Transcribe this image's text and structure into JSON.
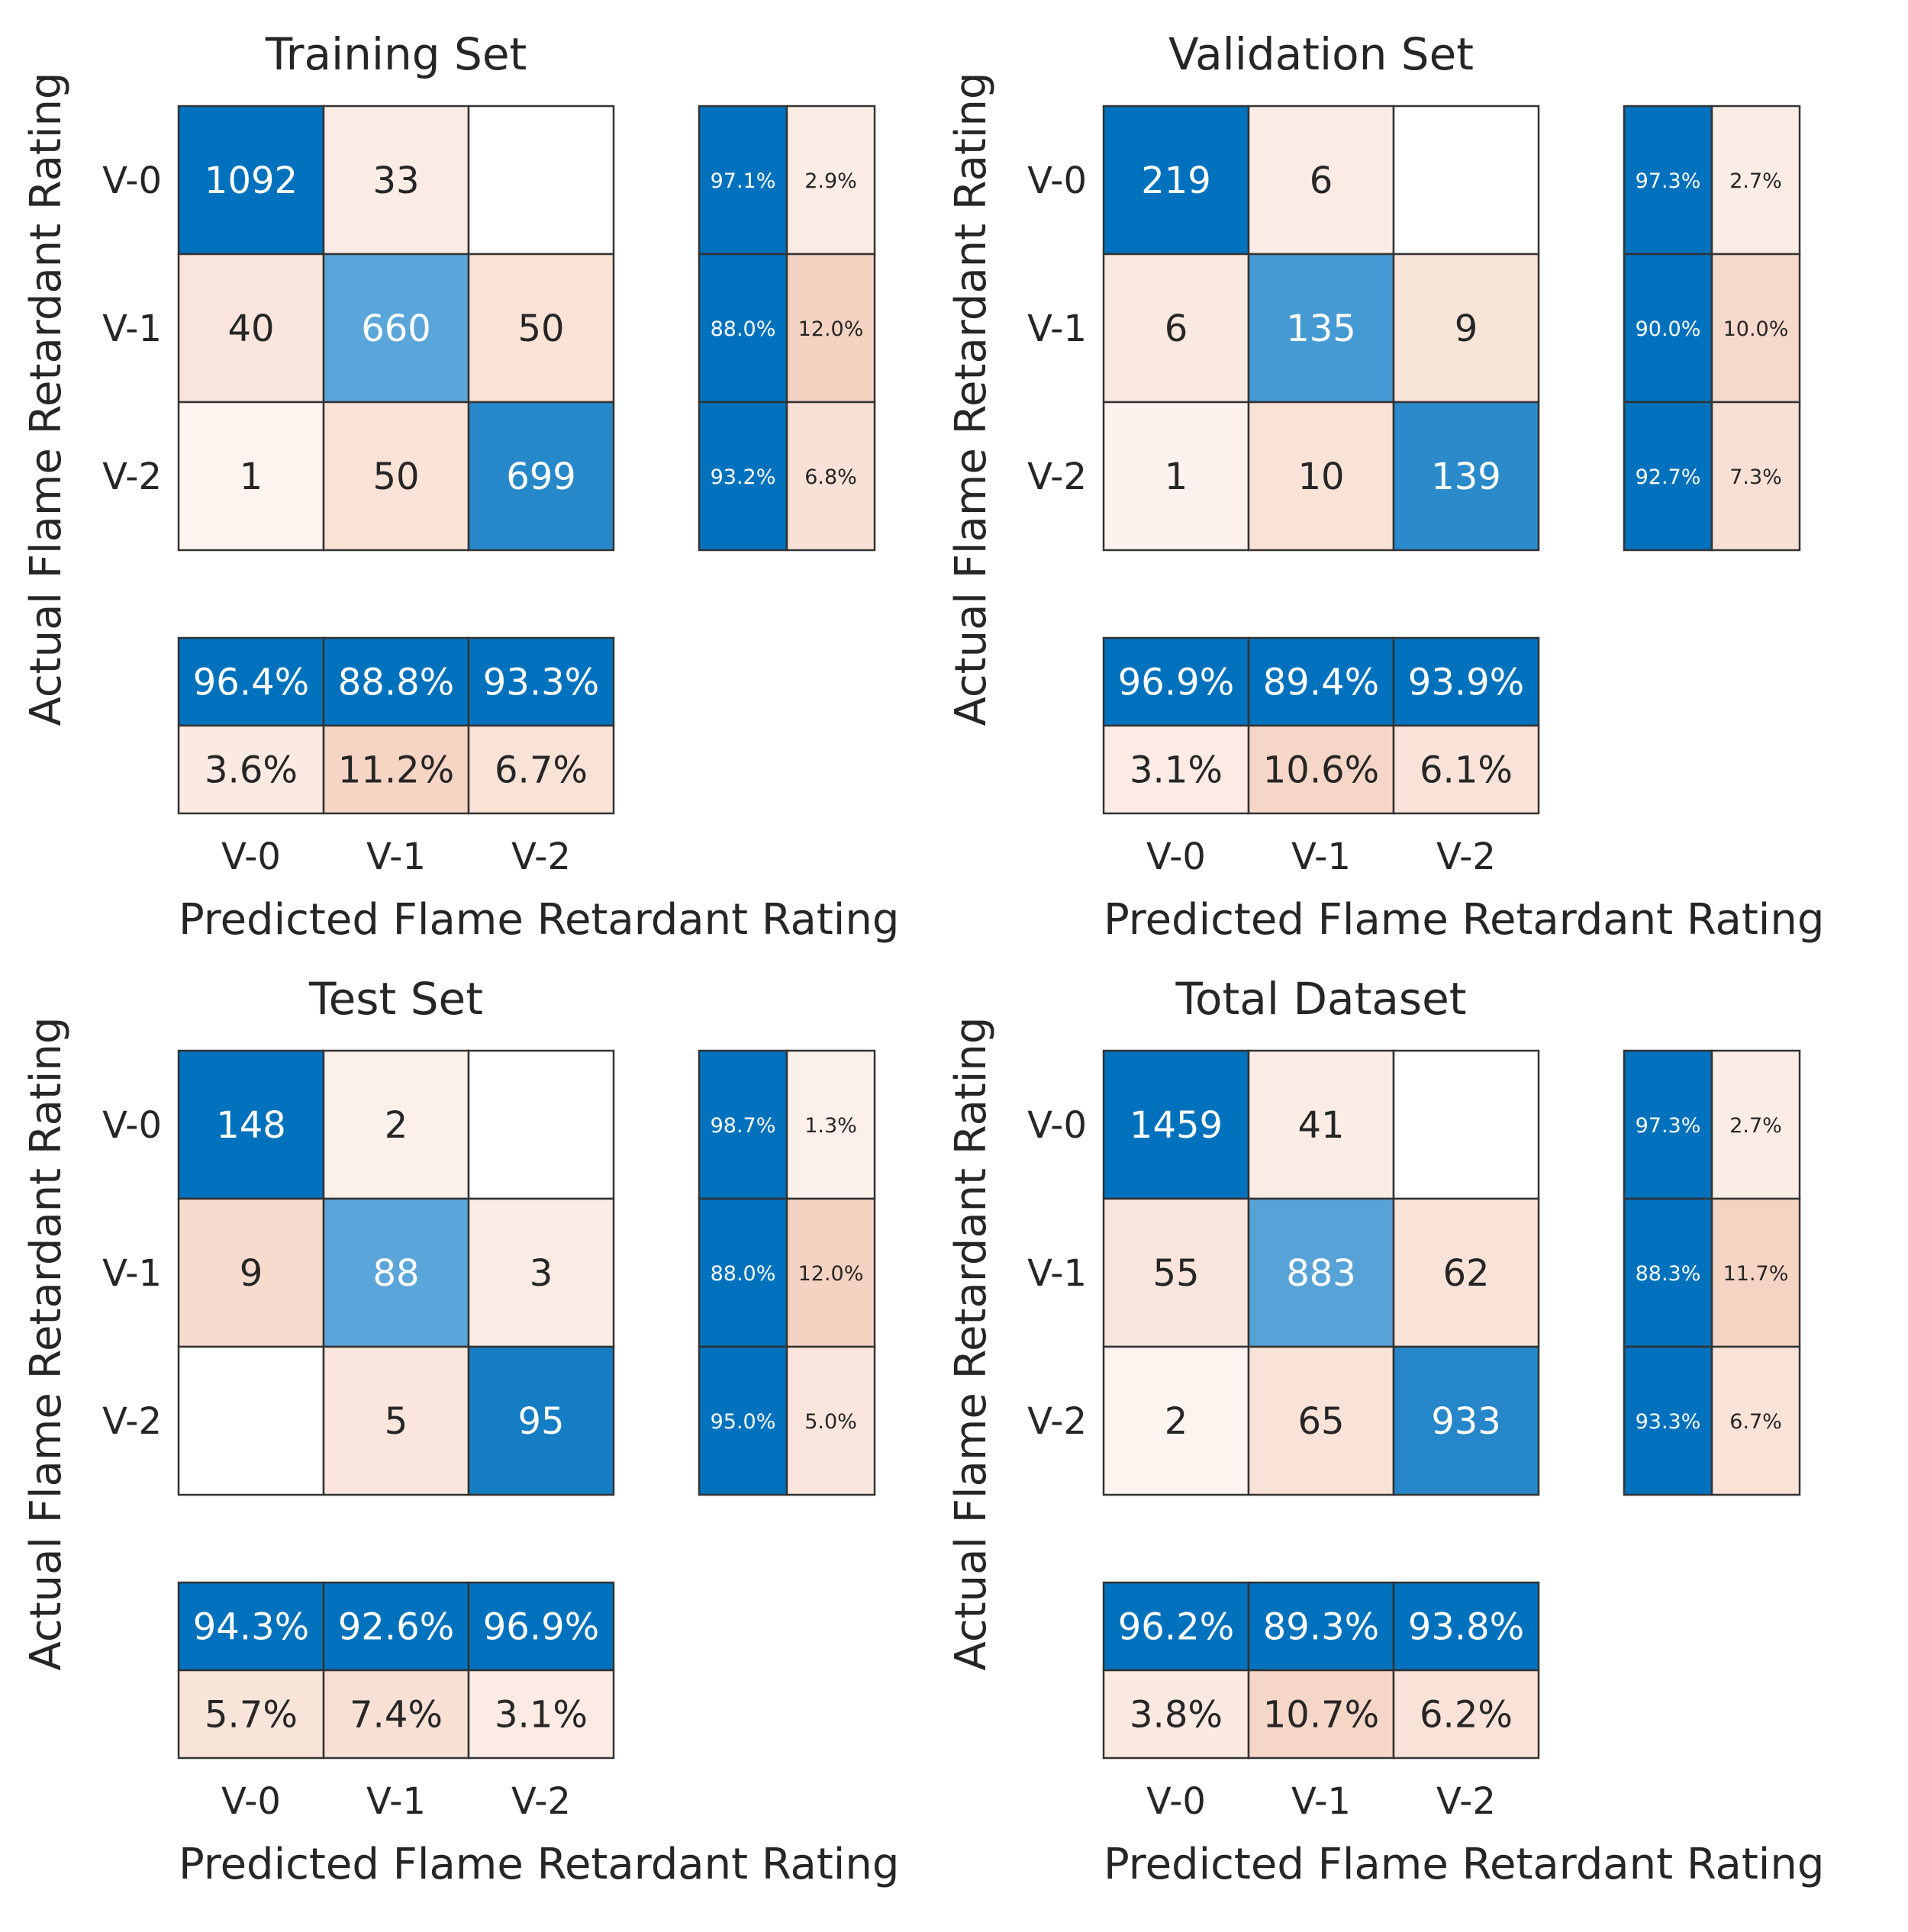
{
  "chart_data": [
    {
      "type": "heatmap",
      "title": "Training Set",
      "xlabel": "Predicted Flame Retardant Rating",
      "ylabel": "Actual Flame Retardant Rating",
      "classes": [
        "V-0",
        "V-1",
        "V-2"
      ],
      "matrix": [
        [
          1092,
          33,
          null
        ],
        [
          40,
          660,
          50
        ],
        [
          1,
          50,
          699
        ]
      ],
      "row_summary": [
        [
          "97.1%",
          "2.9%"
        ],
        [
          "88.0%",
          "12.0%"
        ],
        [
          "93.2%",
          "6.8%"
        ]
      ],
      "column_summary": [
        [
          "96.4%",
          "88.8%",
          "93.3%"
        ],
        [
          "3.6%",
          "11.2%",
          "6.7%"
        ]
      ]
    },
    {
      "type": "heatmap",
      "title": "Validation Set",
      "xlabel": "Predicted Flame Retardant Rating",
      "ylabel": "Actual Flame Retardant Rating",
      "classes": [
        "V-0",
        "V-1",
        "V-2"
      ],
      "matrix": [
        [
          219,
          6,
          null
        ],
        [
          6,
          135,
          9
        ],
        [
          1,
          10,
          139
        ]
      ],
      "row_summary": [
        [
          "97.3%",
          "2.7%"
        ],
        [
          "90.0%",
          "10.0%"
        ],
        [
          "92.7%",
          "7.3%"
        ]
      ],
      "column_summary": [
        [
          "96.9%",
          "89.4%",
          "93.9%"
        ],
        [
          "3.1%",
          "10.6%",
          "6.1%"
        ]
      ]
    },
    {
      "type": "heatmap",
      "title": "Test Set",
      "xlabel": "Predicted Flame Retardant Rating",
      "ylabel": "Actual Flame Retardant Rating",
      "classes": [
        "V-0",
        "V-1",
        "V-2"
      ],
      "matrix": [
        [
          148,
          2,
          null
        ],
        [
          9,
          88,
          3
        ],
        [
          null,
          5,
          95
        ]
      ],
      "row_summary": [
        [
          "98.7%",
          "1.3%"
        ],
        [
          "88.0%",
          "12.0%"
        ],
        [
          "95.0%",
          "5.0%"
        ]
      ],
      "column_summary": [
        [
          "94.3%",
          "92.6%",
          "96.9%"
        ],
        [
          "5.7%",
          "7.4%",
          "3.1%"
        ]
      ]
    },
    {
      "type": "heatmap",
      "title": "Total Dataset",
      "xlabel": "Predicted Flame Retardant Rating",
      "ylabel": "Actual Flame Retardant Rating",
      "classes": [
        "V-0",
        "V-1",
        "V-2"
      ],
      "matrix": [
        [
          1459,
          41,
          null
        ],
        [
          55,
          883,
          62
        ],
        [
          2,
          65,
          933
        ]
      ],
      "row_summary": [
        [
          "97.3%",
          "2.7%"
        ],
        [
          "88.3%",
          "11.7%"
        ],
        [
          "93.3%",
          "6.7%"
        ]
      ],
      "column_summary": [
        [
          "96.2%",
          "89.3%",
          "93.8%"
        ],
        [
          "3.8%",
          "10.7%",
          "6.2%"
        ]
      ]
    }
  ],
  "colors": {
    "correct_strong": "#0072bd",
    "correct_medium": "#5aa5d9",
    "incorrect_base": "#fdf4f0",
    "incorrect_strong": "#f5d3c2",
    "empty": "#ffffff",
    "grid_line": "#333333",
    "text_dark": "#262626",
    "text_light": "#ffffff"
  }
}
